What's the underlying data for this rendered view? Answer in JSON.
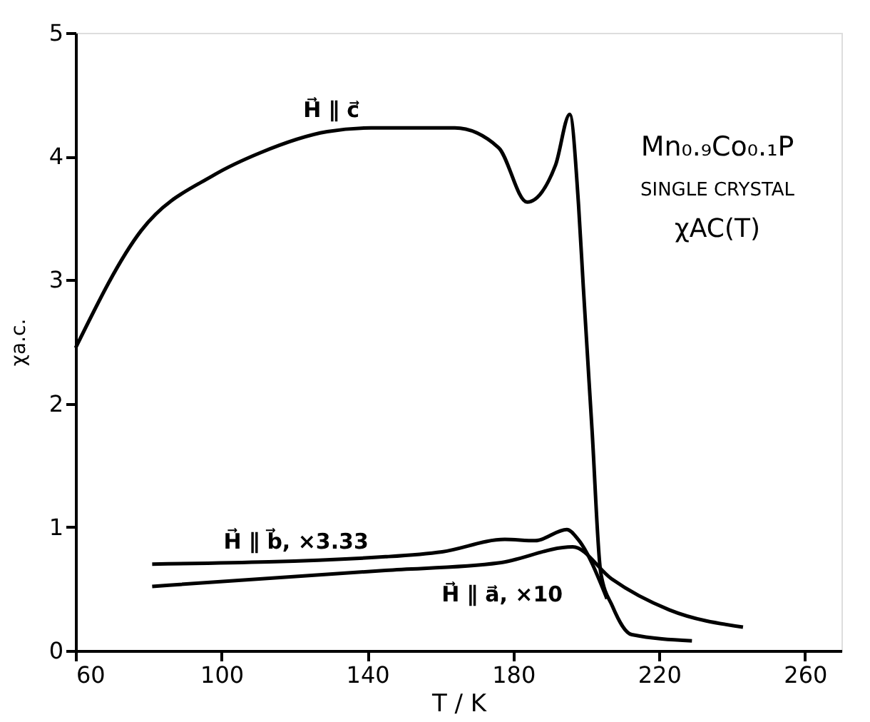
{
  "chart_data": {
    "type": "line",
    "xlabel": "T / K",
    "ylabel": "χa.c.",
    "xlim": [
      60,
      270
    ],
    "xticks": [
      60,
      100,
      140,
      180,
      220,
      260
    ],
    "ylim": [
      0,
      5
    ],
    "yticks": [
      0,
      1,
      2,
      3,
      4,
      5
    ],
    "grid": false,
    "marker": "none",
    "line_style": "solid",
    "annotations": [
      "Mn₀.₉Co₀.₁P",
      "SINGLE CRYSTAL",
      "χAC(T)"
    ],
    "series": [
      {
        "name": "H⃗ ∥ c⃗",
        "color": "#000000",
        "x": [
          60,
          78,
          98,
          110.7,
          129,
          141,
          164,
          176,
          183.8,
          191.6,
          195.5,
          197.9,
          199.2,
          201.6,
          204,
          207.2,
          212.5,
          229
        ],
        "values": [
          2.45,
          3.4,
          3.85,
          4.03,
          4.2,
          4.23,
          4.23,
          4.07,
          3.63,
          3.93,
          4.34,
          3.61,
          2.95,
          1.79,
          0.63,
          0.36,
          0.13,
          0.08
        ]
      },
      {
        "name": "H⃗ ∥ b⃗, ×3.33",
        "color": "#000000",
        "x": [
          81,
          145,
          160.5,
          177.7,
          186,
          194.7,
          197.8,
          205.7
        ],
        "values": [
          0.7,
          0.76,
          0.8,
          0.9,
          0.89,
          0.98,
          0.9,
          0.42
        ]
      },
      {
        "name": "H⃗ ∥ a⃗, ×10",
        "color": "#000000",
        "x": [
          81,
          145,
          176,
          196.3,
          207,
          222.8,
          243
        ],
        "values": [
          0.52,
          0.65,
          0.71,
          0.84,
          0.58,
          0.33,
          0.19
        ]
      }
    ]
  }
}
